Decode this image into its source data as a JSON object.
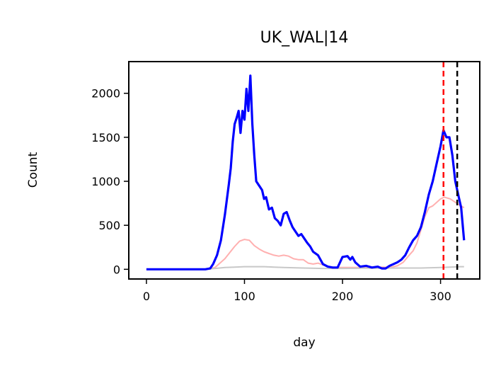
{
  "chart_data": {
    "type": "line",
    "title": "UK_WAL|14",
    "xlabel": "day",
    "ylabel": "Count",
    "xlim": [
      -18,
      340
    ],
    "ylim": [
      -110,
      2360
    ],
    "xticks": [
      0,
      100,
      200,
      300
    ],
    "yticks": [
      0,
      500,
      1000,
      1500,
      2000
    ],
    "grid": false,
    "legend": "none",
    "series": [
      {
        "color": "#0000ff",
        "style": "solid-thick",
        "points": [
          [
            0,
            0
          ],
          [
            60,
            0
          ],
          [
            65,
            10
          ],
          [
            68,
            60
          ],
          [
            72,
            160
          ],
          [
            76,
            330
          ],
          [
            80,
            620
          ],
          [
            84,
            960
          ],
          [
            86,
            1150
          ],
          [
            88,
            1450
          ],
          [
            90,
            1650
          ],
          [
            92,
            1720
          ],
          [
            94,
            1800
          ],
          [
            96,
            1550
          ],
          [
            98,
            1800
          ],
          [
            100,
            1700
          ],
          [
            102,
            2050
          ],
          [
            104,
            1800
          ],
          [
            106,
            2200
          ],
          [
            108,
            1650
          ],
          [
            110,
            1300
          ],
          [
            112,
            1000
          ],
          [
            115,
            950
          ],
          [
            118,
            900
          ],
          [
            120,
            800
          ],
          [
            122,
            820
          ],
          [
            125,
            680
          ],
          [
            128,
            700
          ],
          [
            131,
            580
          ],
          [
            134,
            550
          ],
          [
            137,
            500
          ],
          [
            140,
            630
          ],
          [
            143,
            650
          ],
          [
            146,
            560
          ],
          [
            149,
            480
          ],
          [
            152,
            430
          ],
          [
            155,
            380
          ],
          [
            158,
            400
          ],
          [
            161,
            350
          ],
          [
            164,
            300
          ],
          [
            167,
            260
          ],
          [
            170,
            200
          ],
          [
            175,
            160
          ],
          [
            180,
            60
          ],
          [
            185,
            30
          ],
          [
            190,
            20
          ],
          [
            195,
            20
          ],
          [
            200,
            140
          ],
          [
            205,
            150
          ],
          [
            208,
            110
          ],
          [
            210,
            140
          ],
          [
            213,
            80
          ],
          [
            218,
            30
          ],
          [
            224,
            40
          ],
          [
            230,
            20
          ],
          [
            236,
            30
          ],
          [
            240,
            10
          ],
          [
            244,
            10
          ],
          [
            248,
            40
          ],
          [
            252,
            60
          ],
          [
            256,
            80
          ],
          [
            260,
            110
          ],
          [
            264,
            160
          ],
          [
            268,
            250
          ],
          [
            272,
            330
          ],
          [
            276,
            380
          ],
          [
            280,
            480
          ],
          [
            284,
            650
          ],
          [
            288,
            850
          ],
          [
            292,
            1000
          ],
          [
            296,
            1200
          ],
          [
            300,
            1400
          ],
          [
            303,
            1580
          ],
          [
            306,
            1500
          ],
          [
            309,
            1500
          ],
          [
            312,
            1300
          ],
          [
            315,
            1000
          ],
          [
            318,
            850
          ],
          [
            321,
            700
          ],
          [
            324,
            330
          ]
        ]
      },
      {
        "color": "#ffb0b0",
        "style": "thin",
        "points": [
          [
            0,
            0
          ],
          [
            60,
            0
          ],
          [
            70,
            20
          ],
          [
            80,
            120
          ],
          [
            90,
            260
          ],
          [
            95,
            320
          ],
          [
            100,
            340
          ],
          [
            105,
            330
          ],
          [
            110,
            270
          ],
          [
            115,
            230
          ],
          [
            120,
            200
          ],
          [
            125,
            180
          ],
          [
            130,
            160
          ],
          [
            135,
            150
          ],
          [
            140,
            160
          ],
          [
            145,
            150
          ],
          [
            150,
            120
          ],
          [
            155,
            110
          ],
          [
            160,
            110
          ],
          [
            165,
            70
          ],
          [
            170,
            60
          ],
          [
            175,
            70
          ],
          [
            180,
            50
          ],
          [
            190,
            20
          ],
          [
            200,
            20
          ],
          [
            210,
            20
          ],
          [
            220,
            20
          ],
          [
            230,
            20
          ],
          [
            240,
            25
          ],
          [
            248,
            20
          ],
          [
            256,
            40
          ],
          [
            262,
            80
          ],
          [
            268,
            160
          ],
          [
            272,
            210
          ],
          [
            276,
            300
          ],
          [
            280,
            450
          ],
          [
            284,
            600
          ],
          [
            288,
            700
          ],
          [
            292,
            720
          ],
          [
            296,
            760
          ],
          [
            300,
            800
          ],
          [
            304,
            820
          ],
          [
            310,
            800
          ],
          [
            318,
            740
          ],
          [
            324,
            700
          ]
        ]
      },
      {
        "color": "#c8c8c8",
        "style": "thin",
        "points": [
          [
            0,
            0
          ],
          [
            60,
            0
          ],
          [
            70,
            10
          ],
          [
            80,
            20
          ],
          [
            90,
            25
          ],
          [
            100,
            30
          ],
          [
            110,
            30
          ],
          [
            120,
            30
          ],
          [
            130,
            25
          ],
          [
            140,
            20
          ],
          [
            160,
            15
          ],
          [
            180,
            10
          ],
          [
            200,
            10
          ],
          [
            220,
            12
          ],
          [
            240,
            12
          ],
          [
            260,
            15
          ],
          [
            280,
            15
          ],
          [
            300,
            20
          ],
          [
            310,
            25
          ],
          [
            320,
            30
          ],
          [
            324,
            30
          ]
        ]
      }
    ],
    "vlines": [
      {
        "x": 303,
        "color": "#ff0000",
        "style": "dashed"
      },
      {
        "x": 317,
        "color": "#000000",
        "style": "dashed"
      }
    ]
  }
}
